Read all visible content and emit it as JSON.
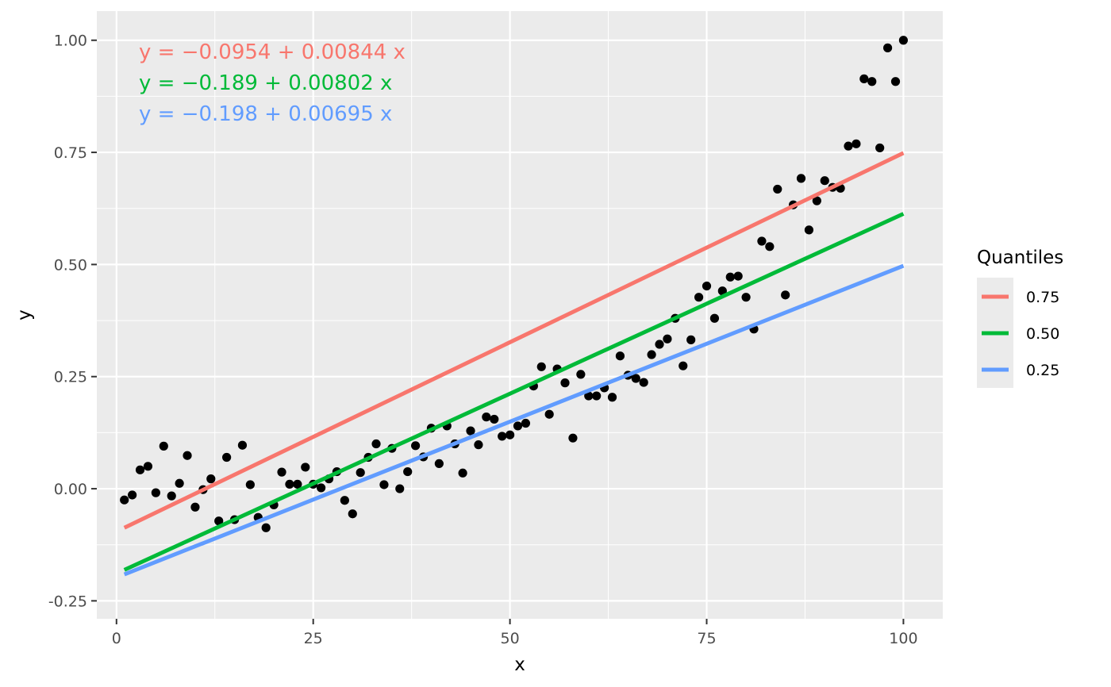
{
  "chart_data": {
    "type": "scatter",
    "xlabel": "x",
    "ylabel": "y",
    "xlim": [
      -2.5,
      105
    ],
    "ylim": [
      -0.29,
      1.065
    ],
    "x_ticks": [
      0,
      25,
      50,
      75,
      100
    ],
    "x_tick_labels": [
      "0",
      "25",
      "50",
      "75",
      "100"
    ],
    "y_ticks": [
      -0.25,
      0,
      0.25,
      0.5,
      0.75,
      1.0
    ],
    "y_tick_labels": [
      "-0.25",
      "0.00",
      "0.25",
      "0.50",
      "0.75",
      "1.00"
    ],
    "grid": true,
    "point_color": "#000000",
    "points": [
      [
        1,
        -0.025
      ],
      [
        2,
        -0.014
      ],
      [
        3,
        0.042
      ],
      [
        4,
        0.05
      ],
      [
        5,
        -0.009
      ],
      [
        6,
        0.095
      ],
      [
        7,
        -0.016
      ],
      [
        8,
        0.012
      ],
      [
        9,
        0.074
      ],
      [
        10,
        -0.041
      ],
      [
        11,
        -0.002
      ],
      [
        12,
        0.022
      ],
      [
        13,
        -0.072
      ],
      [
        14,
        0.07
      ],
      [
        15,
        -0.069
      ],
      [
        16,
        0.097
      ],
      [
        17,
        0.009
      ],
      [
        18,
        -0.064
      ],
      [
        19,
        -0.087
      ],
      [
        20,
        -0.036
      ],
      [
        21,
        0.037
      ],
      [
        22,
        0.01
      ],
      [
        23,
        0.01
      ],
      [
        24,
        0.048
      ],
      [
        25,
        0.01
      ],
      [
        26,
        0.002
      ],
      [
        27,
        0.022
      ],
      [
        28,
        0.038
      ],
      [
        29,
        -0.026
      ],
      [
        30,
        -0.056
      ],
      [
        31,
        0.036
      ],
      [
        32,
        0.07
      ],
      [
        33,
        0.1
      ],
      [
        34,
        0.009
      ],
      [
        35,
        0.09
      ],
      [
        36,
        0.0
      ],
      [
        37,
        0.038
      ],
      [
        38,
        0.096
      ],
      [
        39,
        0.071
      ],
      [
        40,
        0.135
      ],
      [
        41,
        0.056
      ],
      [
        42,
        0.14
      ],
      [
        43,
        0.1
      ],
      [
        44,
        0.035
      ],
      [
        45,
        0.129
      ],
      [
        46,
        0.098
      ],
      [
        47,
        0.16
      ],
      [
        48,
        0.155
      ],
      [
        49,
        0.117
      ],
      [
        50,
        0.12
      ],
      [
        51,
        0.14
      ],
      [
        52,
        0.146
      ],
      [
        53,
        0.229
      ],
      [
        54,
        0.272
      ],
      [
        55,
        0.166
      ],
      [
        56,
        0.267
      ],
      [
        57,
        0.236
      ],
      [
        58,
        0.113
      ],
      [
        59,
        0.255
      ],
      [
        60,
        0.207
      ],
      [
        61,
        0.207
      ],
      [
        62,
        0.225
      ],
      [
        63,
        0.204
      ],
      [
        64,
        0.296
      ],
      [
        65,
        0.253
      ],
      [
        66,
        0.246
      ],
      [
        67,
        0.237
      ],
      [
        68,
        0.299
      ],
      [
        69,
        0.322
      ],
      [
        70,
        0.334
      ],
      [
        71,
        0.38
      ],
      [
        72,
        0.274
      ],
      [
        73,
        0.332
      ],
      [
        74,
        0.427
      ],
      [
        75,
        0.452
      ],
      [
        76,
        0.38
      ],
      [
        77,
        0.441
      ],
      [
        78,
        0.472
      ],
      [
        79,
        0.474
      ],
      [
        80,
        0.427
      ],
      [
        81,
        0.356
      ],
      [
        82,
        0.552
      ],
      [
        83,
        0.54
      ],
      [
        84,
        0.668
      ],
      [
        85,
        0.432
      ],
      [
        86,
        0.633
      ],
      [
        87,
        0.692
      ],
      [
        88,
        0.577
      ],
      [
        89,
        0.642
      ],
      [
        90,
        0.687
      ],
      [
        91,
        0.672
      ],
      [
        92,
        0.67
      ],
      [
        93,
        0.764
      ],
      [
        94,
        0.769
      ],
      [
        95,
        0.914
      ],
      [
        96,
        0.908
      ],
      [
        97,
        0.76
      ],
      [
        98,
        0.983
      ],
      [
        99,
        0.908
      ],
      [
        100,
        1.0
      ]
    ],
    "series": [
      {
        "name": "0.75",
        "intercept": -0.0954,
        "slope": 0.00844,
        "x_range": [
          1,
          100
        ],
        "color": "#F8766D",
        "equation": "y = −0.0954 + 0.00844 x"
      },
      {
        "name": "0.50",
        "intercept": -0.189,
        "slope": 0.00802,
        "x_range": [
          1,
          100
        ],
        "color": "#00BA38",
        "equation": "y = −0.189 + 0.00802 x"
      },
      {
        "name": "0.25",
        "intercept": -0.198,
        "slope": 0.00695,
        "x_range": [
          1,
          100
        ],
        "color": "#619CFF",
        "equation": "y = −0.198 + 0.00695 x"
      }
    ],
    "legend": {
      "title": "Quantiles",
      "placement": "right",
      "entries": [
        "0.75",
        "0.50",
        "0.25"
      ]
    },
    "colors": {
      "panel_background": "#EBEBEB",
      "grid_major": "#FFFFFF",
      "axis_ticks": "#333333"
    }
  }
}
